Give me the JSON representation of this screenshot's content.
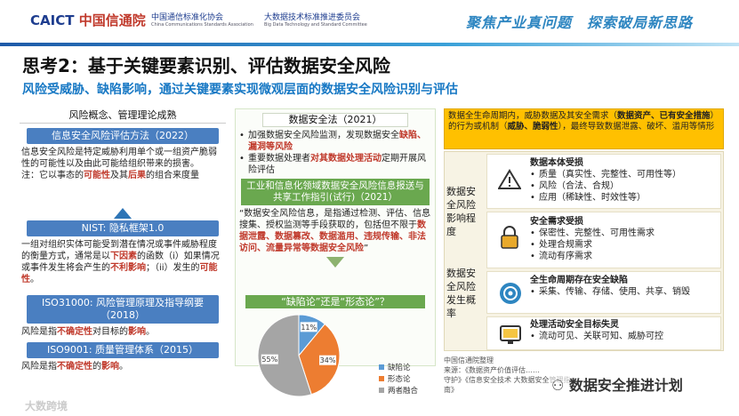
{
  "header": {
    "logo1_caict": "CAICT",
    "logo1_cn": "中国信通院",
    "logo2_cn": "中国通信标准化协会",
    "logo2_en": "China Communications Standards Association",
    "logo3_cn": "大数据技术标准推进委员会",
    "logo3_en": "Big Data Technology and Standard Committee",
    "slogan": "聚焦产业真问题　探索破局新思路"
  },
  "title": "思考2：基于关键要素识别、评估数据安全风险",
  "subtitle": "风险受威胁、缺陷影响，通过关键要素实现微观层面的数据安全风险识别与评估",
  "left": {
    "top_label": "风险概念、管理理论成熟",
    "box1_title": "信息安全风险评估方法（2022）",
    "box1_text_a": "信息安全风险是特定威胁利用单个或一组资产脆弱性的可能性以及由此可能给组织带来的损害。",
    "box1_text_b": "注：它以事态的",
    "box1_text_red1": "可能性",
    "box1_text_c": "及其",
    "box1_text_red2": "后果",
    "box1_text_d": "的组合来度量",
    "box2_title": "NIST: 隐私框架1.0",
    "box2_text_a": "一组对组织实体可能受到潜在情况或事件威胁程度的衡量方式，通常是以",
    "box2_text_red1": "下因素",
    "box2_text_b": "的函数（i）如果情况或事件发生将会产生的",
    "box2_text_red2": "不利影响",
    "box2_text_c": "；（ii）发生的",
    "box2_text_red3": "可能性",
    "box2_text_d": "。",
    "box3_title": "ISO31000: 风险管理原理及指导纲要（2018）",
    "box3_text_a": "风险是指",
    "box3_text_red1": "不确定性",
    "box3_text_b": "对目标的",
    "box3_text_red2": "影响",
    "box3_text_c": "。",
    "box4_title": "ISO9001: 质量管理体系（2015）",
    "box4_text_a": "风险是指",
    "box4_text_red1": "不确定性",
    "box4_text_b": "的",
    "box4_text_red2": "影响",
    "box4_text_c": "。"
  },
  "middle": {
    "law_title": "数据安全法（2021）",
    "law_item1_a": "加强数据安全风险监测，发现数据安全",
    "law_item1_red": "缺陷、漏洞等风险",
    "law_item2_a": "重要数据处理者",
    "law_item2_red": "对其数据处理活动",
    "law_item2_b": "定期开展风险评估",
    "guide_title": "工业和信息化领域数据安全风险信息报送与共享工作指引(试行)（2021）",
    "guide_text_a": "“数据安全风险信息，是指通过检测、评估、信息搜集、授权监测等手段获取的，包括但不限于",
    "guide_text_red": "数据泄露、数据篡改、数据滥用、违规传输、非法访问、流量异常等数据安全风险",
    "guide_text_b": "”",
    "pie_title": "“缺陷论”还是“形态论”？"
  },
  "chart_data": {
    "type": "pie",
    "title": "“缺陷论”还是“形态论”？",
    "categories": [
      "缺陷论",
      "形态论",
      "两者融合"
    ],
    "values": [
      11,
      34,
      55
    ],
    "labels": [
      "11%",
      "34%",
      "55%"
    ],
    "colors": [
      "#5b9bd5",
      "#ed7d31",
      "#a5a5a5"
    ],
    "legend": "right"
  },
  "right": {
    "top_text_a": "数据全生命周期内，威胁数据及其安全需求（",
    "top_text_b1": "数据资产、已有安全措施",
    "top_text_c": "）的行为或机制（",
    "top_text_b2": "威胁、脆弱性",
    "top_text_d": "），最终导致数据泄露、破坏、滥用等情形",
    "label1": "数据安全风险影响程度",
    "label2": "数据安全风险发生概率",
    "row1_title": "数据本体受损",
    "row1_items": [
      "质量（真实性、完整性、可用性等）",
      "风险（合法、合规）",
      "应用（稀缺性、时效性等）"
    ],
    "row2_title": "安全需求受损",
    "row2_items": [
      "保密性、完整性、可用性需求",
      "处理合规需求",
      "流动有序需求"
    ],
    "row3_title": "全生命周期存在安全缺陷",
    "row3_items": [
      "采集、传输、存储、使用、共享、销毁"
    ],
    "row4_title": "处理活动安全目标失灵",
    "row4_items": [
      "流动可见、关联可知、威胁可控"
    ],
    "icon_names": [
      "warning-icon",
      "padlock-icon",
      "cycle-icon",
      "monitor-icon"
    ]
  },
  "source": {
    "line1": "中国信通院整理",
    "line2": "来源：《数据资产价值评估……",
    "line3": "守护》《信息安全技术 大数据安全管理指南》"
  },
  "watermark": {
    "wechat": "数据安全推进计划",
    "bottom_left": "大数跨境"
  }
}
